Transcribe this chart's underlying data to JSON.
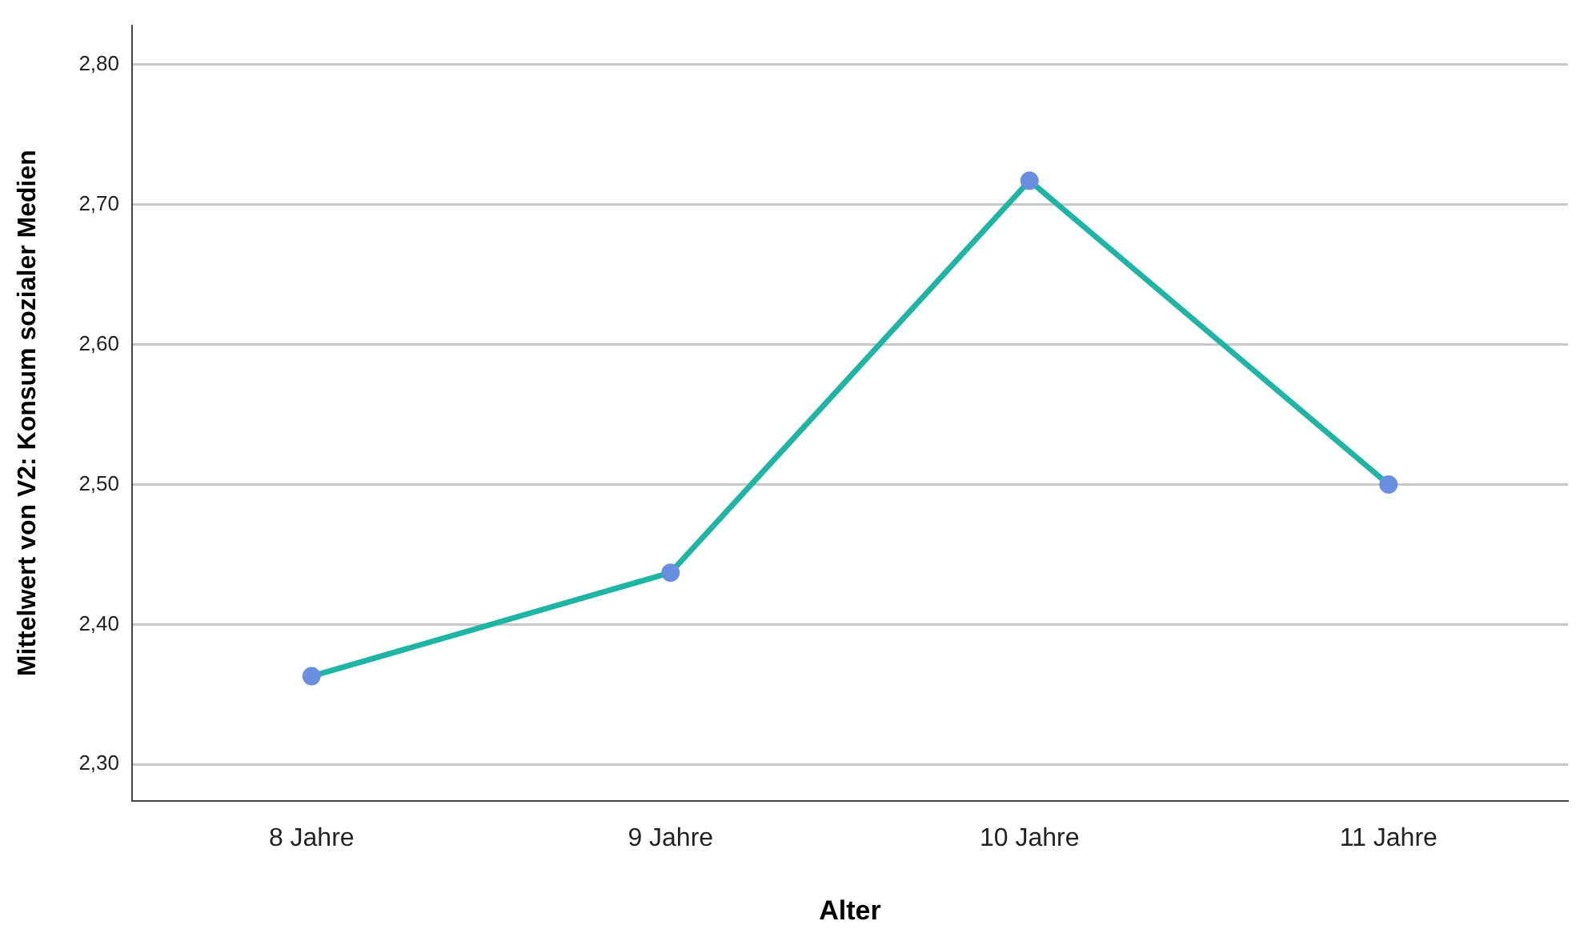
{
  "chart_data": {
    "type": "line",
    "xlabel": "Alter",
    "ylabel": "Mittelwert von V2: Konsum sozialer Medien",
    "categories": [
      "8 Jahre",
      "9 Jahre",
      "10 Jahre",
      "11 Jahre"
    ],
    "series": [
      {
        "color": "#1fb5a5",
        "values": [
          2.363,
          2.437,
          2.717,
          2.5
        ]
      }
    ],
    "ylim": [
      2.274,
      2.828
    ],
    "yticks": [
      {
        "value": 2.3,
        "label": "2,30"
      },
      {
        "value": 2.4,
        "label": "2,40"
      },
      {
        "value": 2.5,
        "label": "2,50"
      },
      {
        "value": 2.6,
        "label": "2,60"
      },
      {
        "value": 2.7,
        "label": "2,70"
      },
      {
        "value": 2.8,
        "label": "2,80"
      }
    ],
    "grid": "y",
    "marker": "circle",
    "legend": false
  }
}
